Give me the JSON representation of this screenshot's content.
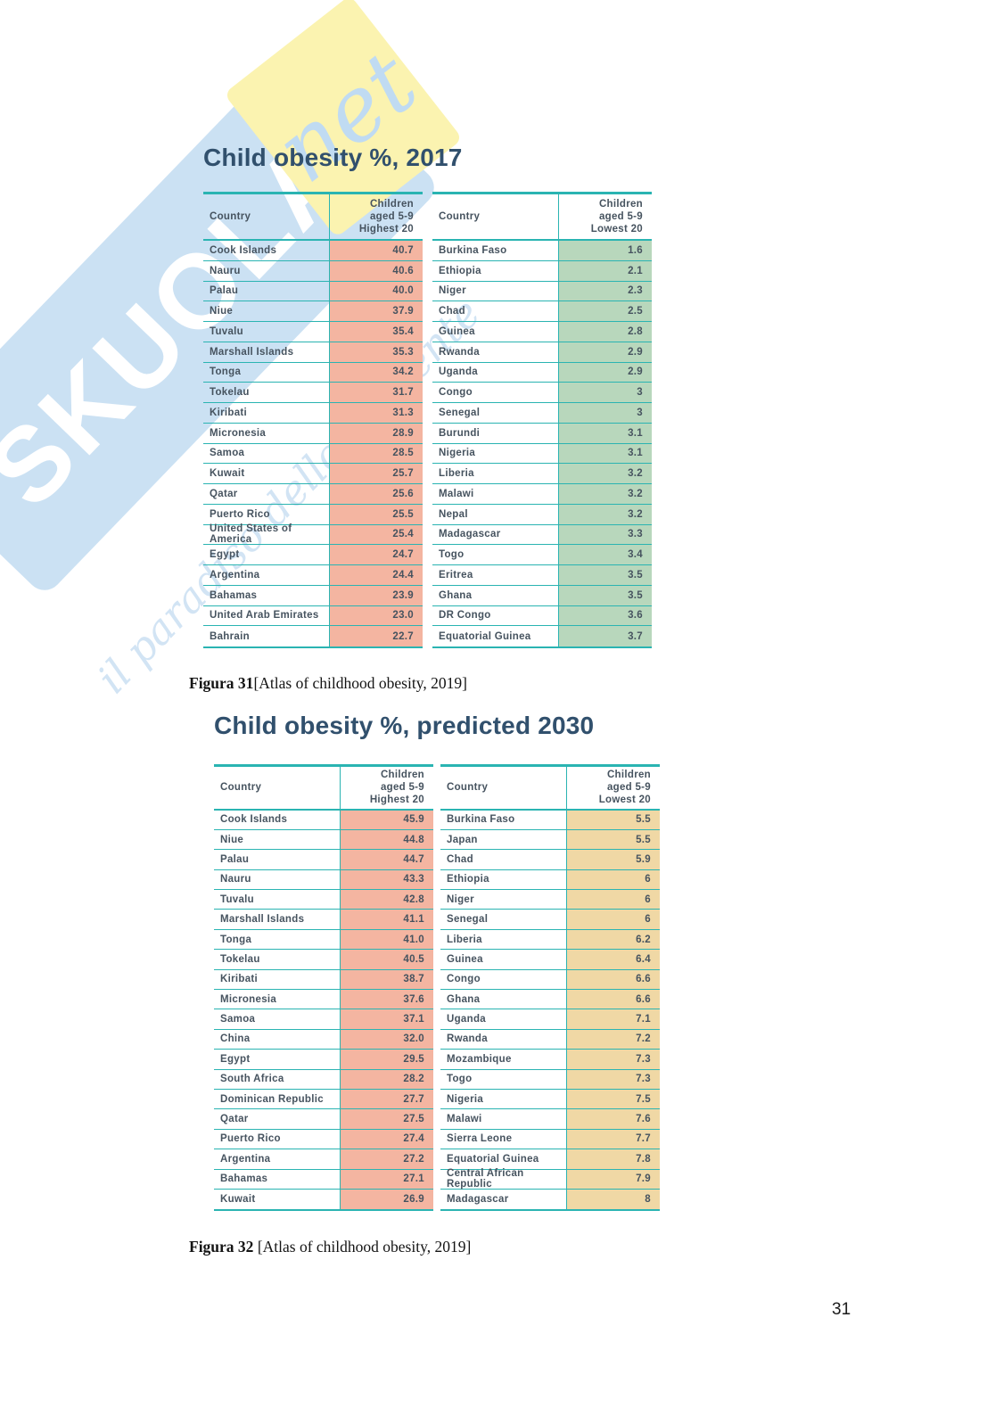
{
  "page": {
    "number": "31"
  },
  "colors": {
    "accent_teal": "#2ab4b2",
    "title_navy": "#31506d",
    "highest_cell_pink": "#f4b5a1",
    "lowest2017_cell_green": "#b8d7bc",
    "lowest2030_cell_tan": "#f0d8a5",
    "watermark_blue": "#cbe1f3",
    "watermark_yellow": "#fbf3b0"
  },
  "watermark": {
    "brand": "SKUOLA",
    "suffix": "net",
    "tagline": "il paradiso dello studente"
  },
  "figure31": {
    "title": "Child obesity %, 2017",
    "caption_label": "Figura 31",
    "caption_text": "[Atlas of childhood obesity, 2019]",
    "highest": {
      "header_country": "Country",
      "header_value": "Children\naged 5-9\nHighest 20",
      "rows": [
        {
          "country": "Cook Islands",
          "value": "40.7"
        },
        {
          "country": "Nauru",
          "value": "40.6"
        },
        {
          "country": "Palau",
          "value": "40.0"
        },
        {
          "country": "Niue",
          "value": "37.9"
        },
        {
          "country": "Tuvalu",
          "value": "35.4"
        },
        {
          "country": "Marshall Islands",
          "value": "35.3"
        },
        {
          "country": "Tonga",
          "value": "34.2"
        },
        {
          "country": "Tokelau",
          "value": "31.7"
        },
        {
          "country": "Kiribati",
          "value": "31.3"
        },
        {
          "country": "Micronesia",
          "value": "28.9"
        },
        {
          "country": "Samoa",
          "value": "28.5"
        },
        {
          "country": "Kuwait",
          "value": "25.7"
        },
        {
          "country": "Qatar",
          "value": "25.6"
        },
        {
          "country": "Puerto Rico",
          "value": "25.5"
        },
        {
          "country": "United States of America",
          "value": "25.4"
        },
        {
          "country": "Egypt",
          "value": "24.7"
        },
        {
          "country": "Argentina",
          "value": "24.4"
        },
        {
          "country": "Bahamas",
          "value": "23.9"
        },
        {
          "country": "United Arab Emirates",
          "value": "23.0"
        },
        {
          "country": "Bahrain",
          "value": "22.7"
        }
      ]
    },
    "lowest": {
      "header_country": "Country",
      "header_value": "Children\naged 5-9\nLowest 20",
      "rows": [
        {
          "country": "Burkina Faso",
          "value": "1.6"
        },
        {
          "country": "Ethiopia",
          "value": "2.1"
        },
        {
          "country": "Niger",
          "value": "2.3"
        },
        {
          "country": "Chad",
          "value": "2.5"
        },
        {
          "country": "Guinea",
          "value": "2.8"
        },
        {
          "country": "Rwanda",
          "value": "2.9"
        },
        {
          "country": "Uganda",
          "value": "2.9"
        },
        {
          "country": "Congo",
          "value": "3"
        },
        {
          "country": "Senegal",
          "value": "3"
        },
        {
          "country": "Burundi",
          "value": "3.1"
        },
        {
          "country": "Nigeria",
          "value": "3.1"
        },
        {
          "country": "Liberia",
          "value": "3.2"
        },
        {
          "country": "Malawi",
          "value": "3.2"
        },
        {
          "country": "Nepal",
          "value": "3.2"
        },
        {
          "country": "Madagascar",
          "value": "3.3"
        },
        {
          "country": "Togo",
          "value": "3.4"
        },
        {
          "country": "Eritrea",
          "value": "3.5"
        },
        {
          "country": "Ghana",
          "value": "3.5"
        },
        {
          "country": "DR Congo",
          "value": "3.6"
        },
        {
          "country": "Equatorial Guinea",
          "value": "3.7"
        }
      ]
    }
  },
  "figure32": {
    "title": "Child obesity %, predicted 2030",
    "caption_label": "Figura 32",
    "caption_text": " [Atlas of childhood obesity, 2019]",
    "highest": {
      "header_country": "Country",
      "header_value": "Children\naged 5-9\nHighest 20",
      "rows": [
        {
          "country": "Cook Islands",
          "value": "45.9"
        },
        {
          "country": "Niue",
          "value": "44.8"
        },
        {
          "country": "Palau",
          "value": "44.7"
        },
        {
          "country": "Nauru",
          "value": "43.3"
        },
        {
          "country": "Tuvalu",
          "value": "42.8"
        },
        {
          "country": "Marshall Islands",
          "value": "41.1"
        },
        {
          "country": "Tonga",
          "value": "41.0"
        },
        {
          "country": "Tokelau",
          "value": "40.5"
        },
        {
          "country": "Kiribati",
          "value": "38.7"
        },
        {
          "country": "Micronesia",
          "value": "37.6"
        },
        {
          "country": "Samoa",
          "value": "37.1"
        },
        {
          "country": "China",
          "value": "32.0"
        },
        {
          "country": "Egypt",
          "value": "29.5"
        },
        {
          "country": "South Africa",
          "value": "28.2"
        },
        {
          "country": "Dominican Republic",
          "value": "27.7"
        },
        {
          "country": "Qatar",
          "value": "27.5"
        },
        {
          "country": "Puerto Rico",
          "value": "27.4"
        },
        {
          "country": "Argentina",
          "value": "27.2"
        },
        {
          "country": "Bahamas",
          "value": "27.1"
        },
        {
          "country": "Kuwait",
          "value": "26.9"
        }
      ]
    },
    "lowest": {
      "header_country": "Country",
      "header_value": "Children\naged 5-9\nLowest 20",
      "rows": [
        {
          "country": "Burkina Faso",
          "value": "5.5"
        },
        {
          "country": "Japan",
          "value": "5.5"
        },
        {
          "country": "Chad",
          "value": "5.9"
        },
        {
          "country": "Ethiopia",
          "value": "6"
        },
        {
          "country": "Niger",
          "value": "6"
        },
        {
          "country": "Senegal",
          "value": "6"
        },
        {
          "country": "Liberia",
          "value": "6.2"
        },
        {
          "country": "Guinea",
          "value": "6.4"
        },
        {
          "country": "Congo",
          "value": "6.6"
        },
        {
          "country": "Ghana",
          "value": "6.6"
        },
        {
          "country": "Uganda",
          "value": "7.1"
        },
        {
          "country": "Rwanda",
          "value": "7.2"
        },
        {
          "country": "Mozambique",
          "value": "7.3"
        },
        {
          "country": "Togo",
          "value": "7.3"
        },
        {
          "country": "Nigeria",
          "value": "7.5"
        },
        {
          "country": "Malawi",
          "value": "7.6"
        },
        {
          "country": "Sierra Leone",
          "value": "7.7"
        },
        {
          "country": "Equatorial Guinea",
          "value": "7.8"
        },
        {
          "country": "Central African Republic",
          "value": "7.9"
        },
        {
          "country": "Madagascar",
          "value": "8"
        }
      ]
    }
  }
}
